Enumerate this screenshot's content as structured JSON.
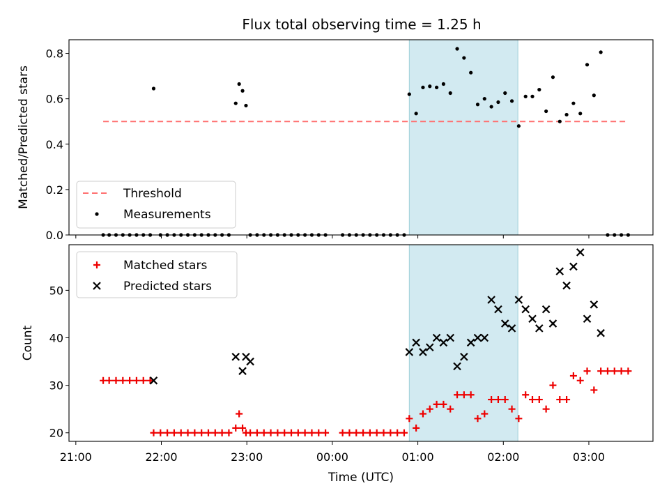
{
  "title": "Flux total observing time = 1.25 h",
  "colors": {
    "threshold": "#ff7070",
    "measurement": "#000000",
    "matched": "#ee0000",
    "predicted": "#000000",
    "shade": "#add8e6"
  },
  "chart_data": [
    {
      "type": "scatter",
      "ylabel": "Matched/Predicted stars",
      "ylim": [
        0,
        0.86
      ],
      "yticks": [
        0.0,
        0.2,
        0.4,
        0.6,
        0.8
      ],
      "ytick_labels": [
        "0.0",
        "0.2",
        "0.4",
        "0.6",
        "0.8"
      ],
      "xlim": [
        -0.08,
        6.75
      ],
      "shaded_interval": [
        3.9,
        5.17
      ],
      "legend": {
        "placement": "lower-left",
        "entries": [
          "Threshold",
          "Measurements"
        ]
      },
      "threshold": {
        "name": "Threshold",
        "y": 0.5,
        "x": [
          0.32,
          6.45
        ]
      },
      "series": [
        {
          "name": "Measurements",
          "x": [
            0.32,
            0.39,
            0.47,
            0.55,
            0.63,
            0.71,
            0.79,
            0.87,
            0.91,
            0.99,
            1.07,
            1.15,
            1.23,
            1.31,
            1.39,
            1.47,
            1.55,
            1.63,
            1.71,
            1.79,
            1.87,
            1.91,
            1.95,
            1.99,
            2.04,
            2.12,
            2.2,
            2.28,
            2.36,
            2.44,
            2.52,
            2.6,
            2.68,
            2.76,
            2.84,
            2.92,
            3.12,
            3.2,
            3.28,
            3.36,
            3.44,
            3.52,
            3.6,
            3.68,
            3.76,
            3.84,
            3.9,
            3.98,
            4.06,
            4.14,
            4.22,
            4.3,
            4.38,
            4.46,
            4.54,
            4.62,
            4.7,
            4.78,
            4.86,
            4.94,
            5.02,
            5.1,
            5.18,
            5.26,
            5.34,
            5.42,
            5.5,
            5.58,
            5.66,
            5.74,
            5.82,
            5.9,
            5.98,
            6.06,
            6.14,
            6.22,
            6.3,
            6.38,
            6.46
          ],
          "y": [
            0,
            0,
            0,
            0,
            0,
            0,
            0,
            0,
            0.645,
            0,
            0,
            0,
            0,
            0,
            0,
            0,
            0,
            0,
            0,
            0,
            0.58,
            0.665,
            0.635,
            0.57,
            0,
            0,
            0,
            0,
            0,
            0,
            0,
            0,
            0,
            0,
            0,
            0,
            0,
            0,
            0,
            0,
            0,
            0,
            0,
            0,
            0,
            0,
            0.62,
            0.535,
            0.65,
            0.655,
            0.65,
            0.665,
            0.625,
            0.82,
            0.78,
            0.715,
            0.575,
            0.6,
            0.565,
            0.585,
            0.625,
            0.59,
            0.48,
            0.61,
            0.61,
            0.64,
            0.545,
            0.695,
            0.5,
            0.53,
            0.58,
            0.535,
            0.75,
            0.615,
            0.805,
            0,
            0,
            0,
            0
          ]
        }
      ]
    },
    {
      "type": "scatter",
      "xlabel": "Time (UTC)",
      "ylabel": "Count",
      "ylim": [
        18.2,
        59.6
      ],
      "yticks": [
        20,
        30,
        40,
        50
      ],
      "ytick_labels": [
        "20",
        "30",
        "40",
        "50"
      ],
      "xlim": [
        -0.08,
        6.75
      ],
      "xticks": [
        0,
        1,
        2,
        3,
        4,
        5,
        6
      ],
      "xtick_labels": [
        "21:00",
        "22:00",
        "23:00",
        "00:00",
        "01:00",
        "02:00",
        "03:00"
      ],
      "shaded_interval": [
        3.9,
        5.17
      ],
      "legend": {
        "placement": "top-left",
        "entries": [
          "Matched stars",
          "Predicted stars"
        ]
      },
      "series": [
        {
          "name": "Matched stars",
          "x": [
            0.32,
            0.39,
            0.47,
            0.55,
            0.63,
            0.71,
            0.79,
            0.87,
            0.91,
            0.99,
            1.07,
            1.15,
            1.23,
            1.31,
            1.39,
            1.47,
            1.55,
            1.63,
            1.71,
            1.79,
            1.87,
            1.91,
            1.95,
            1.99,
            2.04,
            2.12,
            2.2,
            2.28,
            2.36,
            2.44,
            2.52,
            2.6,
            2.68,
            2.76,
            2.84,
            2.92,
            3.12,
            3.2,
            3.28,
            3.36,
            3.44,
            3.52,
            3.6,
            3.68,
            3.76,
            3.84,
            3.9,
            3.98,
            4.06,
            4.14,
            4.22,
            4.3,
            4.38,
            4.46,
            4.54,
            4.62,
            4.7,
            4.78,
            4.86,
            4.94,
            5.02,
            5.1,
            5.18,
            5.26,
            5.34,
            5.42,
            5.5,
            5.58,
            5.66,
            5.74,
            5.82,
            5.9,
            5.98,
            6.06,
            6.14,
            6.22,
            6.3,
            6.38,
            6.46
          ],
          "y": [
            31,
            31,
            31,
            31,
            31,
            31,
            31,
            31,
            20,
            20,
            20,
            20,
            20,
            20,
            20,
            20,
            20,
            20,
            20,
            20,
            21,
            24,
            21,
            20,
            20,
            20,
            20,
            20,
            20,
            20,
            20,
            20,
            20,
            20,
            20,
            20,
            20,
            20,
            20,
            20,
            20,
            20,
            20,
            20,
            20,
            20,
            23,
            21,
            24,
            25,
            26,
            26,
            25,
            28,
            28,
            28,
            23,
            24,
            27,
            27,
            27,
            25,
            23,
            28,
            27,
            27,
            25,
            30,
            27,
            27,
            32,
            31,
            33,
            29,
            33,
            33,
            33,
            33,
            33
          ]
        },
        {
          "name": "Predicted stars",
          "x": [
            0.91,
            1.87,
            1.95,
            1.99,
            2.04,
            3.9,
            3.98,
            4.06,
            4.14,
            4.22,
            4.3,
            4.38,
            4.46,
            4.54,
            4.62,
            4.7,
            4.78,
            4.86,
            4.94,
            5.02,
            5.1,
            5.18,
            5.26,
            5.34,
            5.42,
            5.5,
            5.58,
            5.66,
            5.74,
            5.82,
            5.9,
            5.98,
            6.06,
            6.14
          ],
          "y": [
            31,
            36,
            33,
            36,
            35,
            37,
            39,
            37,
            38,
            40,
            39,
            40,
            34,
            36,
            39,
            40,
            40,
            48,
            46,
            43,
            42,
            48,
            46,
            44,
            42,
            46,
            43,
            54,
            51,
            55,
            58,
            44,
            47,
            41
          ]
        }
      ]
    }
  ]
}
